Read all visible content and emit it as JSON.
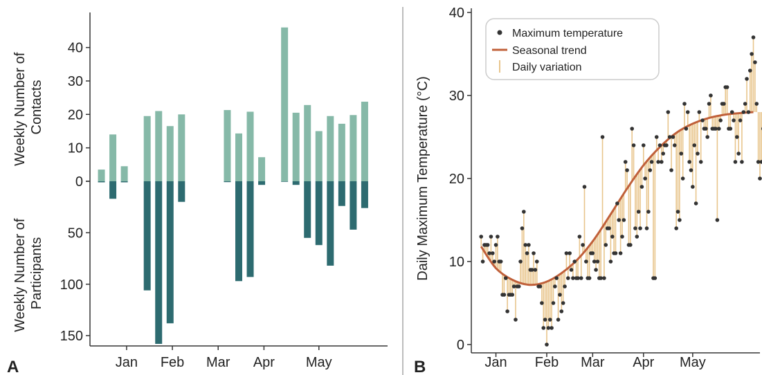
{
  "colors": {
    "contacts_bar": "#86b9a8",
    "participants_bar": "#2d6b70",
    "point": "#333333",
    "trend": "#c0603a",
    "variation": "#e8c58c",
    "divider": "#bdbdbd",
    "axis": "#333333"
  },
  "panel_a": {
    "label": "A",
    "upper_ylabel_line1": "Weekly Number of",
    "upper_ylabel_line2": "Contacts",
    "lower_ylabel_line1": "Weekly Number of",
    "lower_ylabel_line2": "Participants"
  },
  "panel_b": {
    "label": "B",
    "ylabel": "Daily Maximum Temperature (°C)",
    "legend": {
      "points": "Maximum temperature",
      "trend": "Seasonal trend",
      "variation": "Daily variation"
    }
  },
  "chart_data": [
    {
      "type": "bar",
      "panel": "A",
      "x_tick_labels": [
        "Jan",
        "Feb",
        "Mar",
        "Apr",
        "May"
      ],
      "x_ticks_week": [
        3.2,
        7.2,
        11.2,
        15.2,
        20.0
      ],
      "x_range_week": [
        0,
        26
      ],
      "weeks": [
        1,
        2,
        3,
        5,
        6,
        7,
        8,
        12,
        13,
        14,
        15,
        17,
        18,
        19,
        20,
        21,
        22,
        23,
        24
      ],
      "series": [
        {
          "values": [
            3.5,
            14,
            4.5,
            19.5,
            21,
            16.5,
            20,
            21.3,
            14.3,
            20.8,
            7.2,
            46,
            20.5,
            22.8,
            15,
            19.5,
            17.2,
            19.8,
            23.8
          ]
        },
        {
          "values": [
            1,
            17,
            1,
            106,
            158,
            138,
            20,
            0.8,
            97,
            93,
            3.5,
            0.5,
            3.5,
            55,
            62,
            82,
            24,
            47,
            26
          ]
        }
      ],
      "upper_y_ticks": [
        0,
        10,
        20,
        30,
        40
      ],
      "upper_ylim": [
        0,
        48
      ],
      "lower_y_ticks": [
        0,
        50,
        100,
        150
      ],
      "lower_y_tick_labels": [
        "",
        "50",
        "100",
        "150"
      ],
      "lower_ylim": [
        0,
        160
      ]
    },
    {
      "type": "scatter",
      "panel": "B",
      "x_tick_labels": [
        "Jan",
        "Feb",
        "Mar",
        "Apr",
        "May"
      ],
      "x_ticks_day": [
        15,
        46,
        74,
        105,
        135
      ],
      "x_range_day": [
        0,
        176
      ],
      "y_ticks": [
        0,
        10,
        20,
        30,
        40
      ],
      "ylim": [
        -1,
        40.5
      ],
      "trend": [
        [
          6,
          11.8
        ],
        [
          15,
          9.2
        ],
        [
          25,
          7.8
        ],
        [
          35,
          7.2
        ],
        [
          45,
          7.5
        ],
        [
          55,
          8.6
        ],
        [
          65,
          10.3
        ],
        [
          75,
          12.7
        ],
        [
          85,
          15.7
        ],
        [
          95,
          18.8
        ],
        [
          105,
          21.6
        ],
        [
          115,
          23.8
        ],
        [
          125,
          25.5
        ],
        [
          135,
          26.6
        ],
        [
          145,
          27.3
        ],
        [
          155,
          27.7
        ],
        [
          165,
          27.9
        ],
        [
          172,
          28.0
        ]
      ],
      "max_temperature": [
        13,
        10,
        12,
        12,
        12,
        11,
        13,
        11,
        10,
        12,
        13,
        10,
        10,
        6,
        6,
        8,
        4,
        6,
        6,
        6,
        7,
        3,
        7,
        7,
        10,
        14,
        16,
        12,
        11,
        12,
        9,
        9,
        11,
        9,
        10,
        7,
        7,
        5,
        2,
        3,
        0,
        2,
        3,
        2,
        5,
        7,
        8,
        3,
        6,
        4,
        5,
        7,
        11,
        8,
        11,
        9,
        8,
        10,
        8,
        8,
        13,
        8,
        12,
        19,
        10,
        8,
        8,
        11,
        11,
        10,
        9,
        10,
        8,
        8,
        25,
        8,
        12,
        14,
        14,
        10,
        13,
        11,
        11,
        17,
        15,
        11,
        13,
        15,
        22,
        21,
        12,
        12,
        26,
        24,
        14,
        13,
        16,
        14,
        19,
        24,
        20,
        14,
        16,
        21,
        22,
        8,
        8,
        25,
        22,
        24,
        22,
        23,
        24,
        24,
        28,
        25,
        21,
        25,
        24,
        14,
        16,
        15,
        23,
        20,
        29,
        26,
        28,
        22,
        21,
        19,
        24,
        17,
        23,
        28,
        22,
        27,
        26,
        26,
        25,
        29,
        30,
        26,
        26,
        26,
        15,
        26,
        27,
        29,
        29,
        31,
        31,
        26,
        26,
        28,
        27,
        22,
        25,
        23,
        27,
        22,
        28,
        29,
        32,
        28,
        33,
        35,
        37,
        34,
        29,
        22,
        20,
        22,
        26,
        28,
        24,
        24,
        26,
        31,
        28
      ]
    }
  ]
}
